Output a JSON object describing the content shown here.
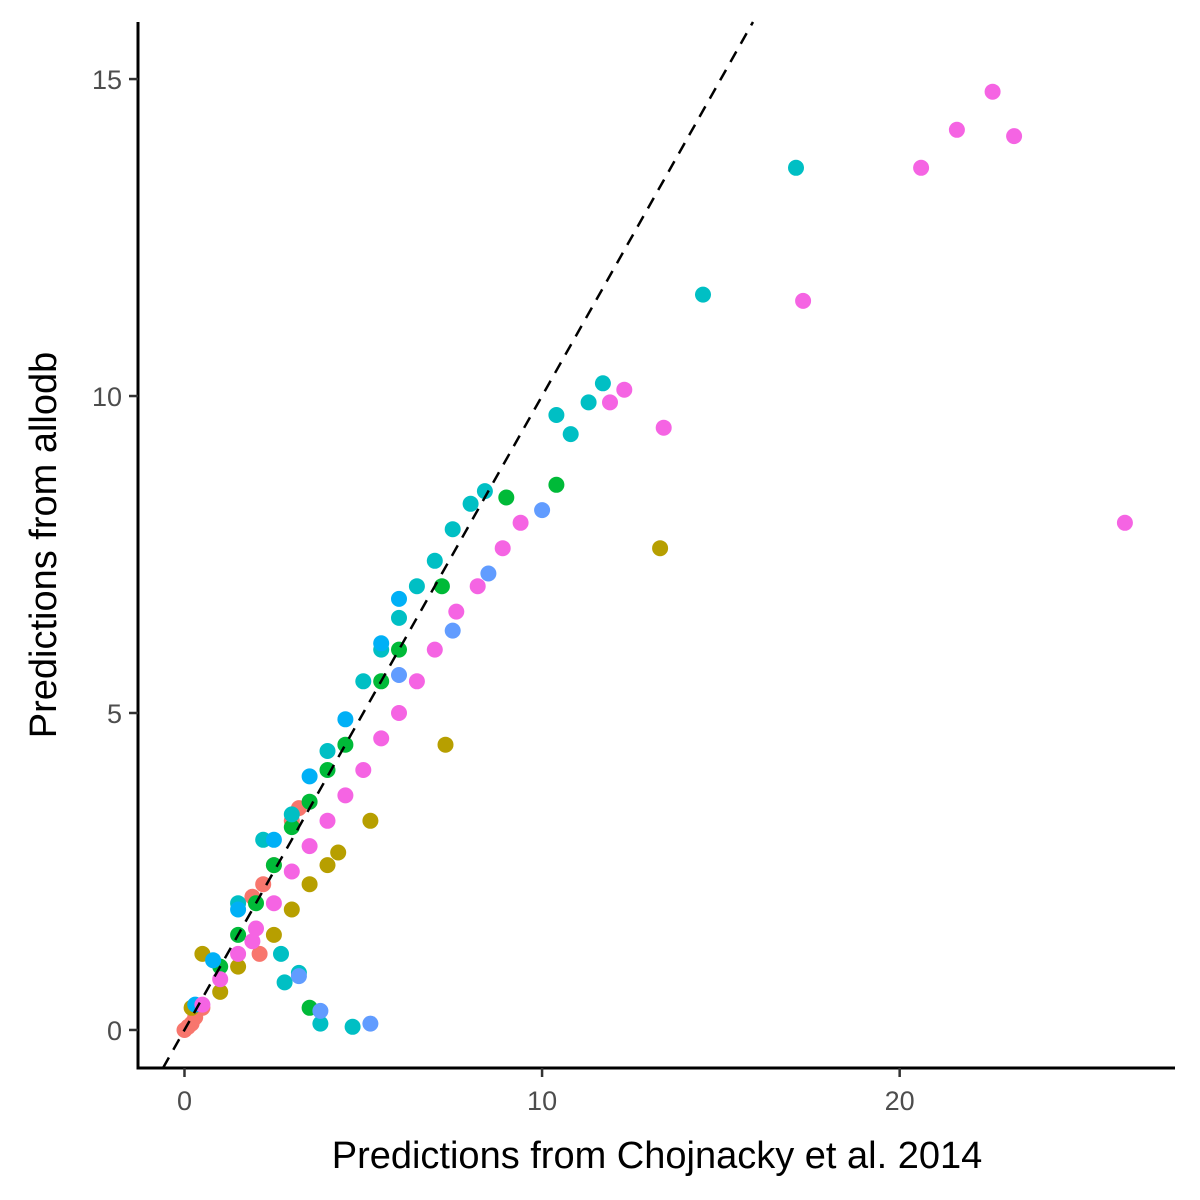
{
  "chart_data": {
    "type": "scatter",
    "xlabel": "Predictions from Chojnacky et al. 2014",
    "ylabel": "Predictions from allodb",
    "xlim": [
      -1.3,
      27.7
    ],
    "ylim": [
      -0.6,
      15.9
    ],
    "x_ticks": [
      0,
      10,
      20
    ],
    "y_ticks": [
      0,
      5,
      10,
      15
    ],
    "grid": false,
    "legend": "none",
    "reference_line": {
      "slope": 1,
      "intercept": 0,
      "style": "dashed",
      "color": "#000000"
    },
    "series": [
      {
        "color": "#F8766D",
        "points": [
          [
            0,
            0
          ],
          [
            0.1,
            0.05
          ],
          [
            0.2,
            0.1
          ],
          [
            0.3,
            0.2
          ],
          [
            0.5,
            0.35
          ],
          [
            1.9,
            2.1
          ],
          [
            2.1,
            1.2
          ],
          [
            2.2,
            2.3
          ],
          [
            2.5,
            2.6
          ],
          [
            3.0,
            3.3
          ],
          [
            3.2,
            3.5
          ]
        ]
      },
      {
        "color": "#B79F00",
        "points": [
          [
            0.5,
            1.2
          ],
          [
            0.2,
            0.35
          ],
          [
            5.2,
            3.3
          ],
          [
            7.3,
            4.5
          ],
          [
            13.3,
            7.6
          ],
          [
            4.3,
            2.8
          ],
          [
            2.5,
            1.5
          ],
          [
            4.0,
            2.6
          ],
          [
            3.5,
            2.3
          ],
          [
            3.0,
            1.9
          ],
          [
            1.5,
            1.0
          ],
          [
            1.0,
            0.6
          ]
        ]
      },
      {
        "color": "#00BA38",
        "points": [
          [
            3.5,
            0.35
          ],
          [
            10.4,
            8.6
          ],
          [
            9.0,
            8.4
          ],
          [
            7.2,
            7.0
          ],
          [
            6.0,
            6.0
          ],
          [
            5.5,
            5.5
          ],
          [
            4.5,
            4.5
          ],
          [
            4.0,
            4.1
          ],
          [
            3.5,
            3.6
          ],
          [
            3.0,
            3.2
          ],
          [
            2.5,
            2.6
          ],
          [
            2.0,
            2.0
          ],
          [
            1.5,
            1.5
          ],
          [
            1.0,
            1.0
          ]
        ]
      },
      {
        "color": "#00BFC4",
        "points": [
          [
            17.1,
            13.6
          ],
          [
            14.5,
            11.6
          ],
          [
            11.7,
            10.2
          ],
          [
            11.3,
            9.9
          ],
          [
            10.4,
            9.7
          ],
          [
            10.8,
            9.4
          ],
          [
            8.4,
            8.5
          ],
          [
            8.0,
            8.3
          ],
          [
            7.5,
            7.9
          ],
          [
            7.0,
            7.4
          ],
          [
            6.5,
            7.0
          ],
          [
            6.0,
            6.5
          ],
          [
            5.5,
            6.0
          ],
          [
            5.0,
            5.5
          ],
          [
            4.0,
            4.4
          ],
          [
            3.0,
            3.4
          ],
          [
            2.2,
            3.0
          ],
          [
            1.5,
            2.0
          ],
          [
            2.7,
            1.2
          ],
          [
            2.8,
            0.75
          ],
          [
            3.2,
            0.9
          ],
          [
            3.8,
            0.1
          ],
          [
            4.7,
            0.05
          ]
        ]
      },
      {
        "color": "#00B0F6",
        "points": [
          [
            4.5,
            4.9
          ],
          [
            6.0,
            6.8
          ],
          [
            5.5,
            6.1
          ],
          [
            3.5,
            4.0
          ],
          [
            2.5,
            3.0
          ],
          [
            1.5,
            1.9
          ],
          [
            0.8,
            1.1
          ],
          [
            0.3,
            0.4
          ]
        ]
      },
      {
        "color": "#619CFF",
        "points": [
          [
            10.0,
            8.2
          ],
          [
            8.5,
            7.2
          ],
          [
            7.5,
            6.3
          ],
          [
            6.0,
            5.6
          ],
          [
            3.8,
            0.3
          ],
          [
            3.2,
            0.85
          ],
          [
            5.2,
            0.1
          ]
        ]
      },
      {
        "color": "#F564E3",
        "points": [
          [
            22.6,
            14.8
          ],
          [
            21.6,
            14.2
          ],
          [
            23.2,
            14.1
          ],
          [
            20.6,
            13.6
          ],
          [
            17.3,
            11.5
          ],
          [
            12.3,
            10.1
          ],
          [
            11.9,
            9.9
          ],
          [
            13.4,
            9.5
          ],
          [
            9.4,
            8.0
          ],
          [
            8.9,
            7.6
          ],
          [
            26.3,
            8.0
          ],
          [
            8.2,
            7.0
          ],
          [
            7.6,
            6.6
          ],
          [
            7.0,
            6.0
          ],
          [
            6.5,
            5.5
          ],
          [
            6.0,
            5.0
          ],
          [
            5.5,
            4.6
          ],
          [
            5.0,
            4.1
          ],
          [
            4.5,
            3.7
          ],
          [
            4.0,
            3.3
          ],
          [
            3.5,
            2.9
          ],
          [
            3.0,
            2.5
          ],
          [
            2.5,
            2.0
          ],
          [
            2.0,
            1.6
          ],
          [
            1.9,
            1.4
          ],
          [
            1.5,
            1.2
          ],
          [
            1.0,
            0.8
          ],
          [
            0.5,
            0.4
          ]
        ]
      }
    ]
  }
}
